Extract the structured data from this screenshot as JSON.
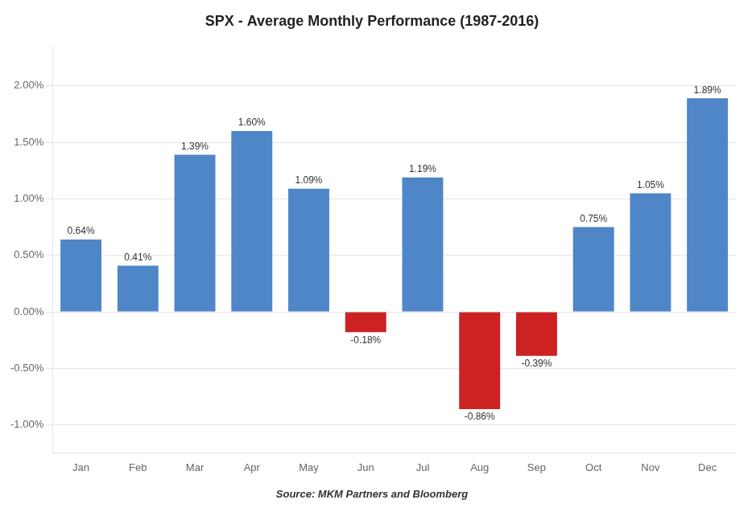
{
  "chart_data": {
    "type": "bar",
    "title": "SPX - Average Monthly Performance (1987-2016)",
    "categories": [
      "Jan",
      "Feb",
      "Mar",
      "Apr",
      "May",
      "Jun",
      "Jul",
      "Aug",
      "Sep",
      "Oct",
      "Nov",
      "Dec"
    ],
    "values": [
      0.64,
      0.41,
      1.39,
      1.6,
      1.09,
      -0.18,
      1.19,
      -0.86,
      -0.39,
      0.75,
      1.05,
      1.89
    ],
    "value_labels": [
      "0.64%",
      "0.41%",
      "1.39%",
      "1.60%",
      "1.09%",
      "-0.18%",
      "1.19%",
      "-0.86%",
      "-0.39%",
      "0.75%",
      "1.05%",
      "1.89%"
    ],
    "colors": [
      "#4e86c8",
      "#4e86c8",
      "#4e86c8",
      "#4e86c8",
      "#4e86c8",
      "#cc2222",
      "#4e86c8",
      "#cc2222",
      "#cc2222",
      "#4e86c8",
      "#4e86c8",
      "#4e86c8"
    ],
    "ylim": [
      -1.25,
      2.35
    ],
    "yticks": [
      {
        "value": -1.0,
        "label": "-1.00%"
      },
      {
        "value": -0.5,
        "label": "-0.50%"
      },
      {
        "value": 0.0,
        "label": "0.00%"
      },
      {
        "value": 0.5,
        "label": "0.50%"
      },
      {
        "value": 1.0,
        "label": "1.00%"
      },
      {
        "value": 1.5,
        "label": "1.50%"
      },
      {
        "value": 2.0,
        "label": "2.00%"
      }
    ],
    "grid": true,
    "data_labels": true,
    "annotations": [
      "Source: MKM Partners and Bloomberg"
    ]
  }
}
